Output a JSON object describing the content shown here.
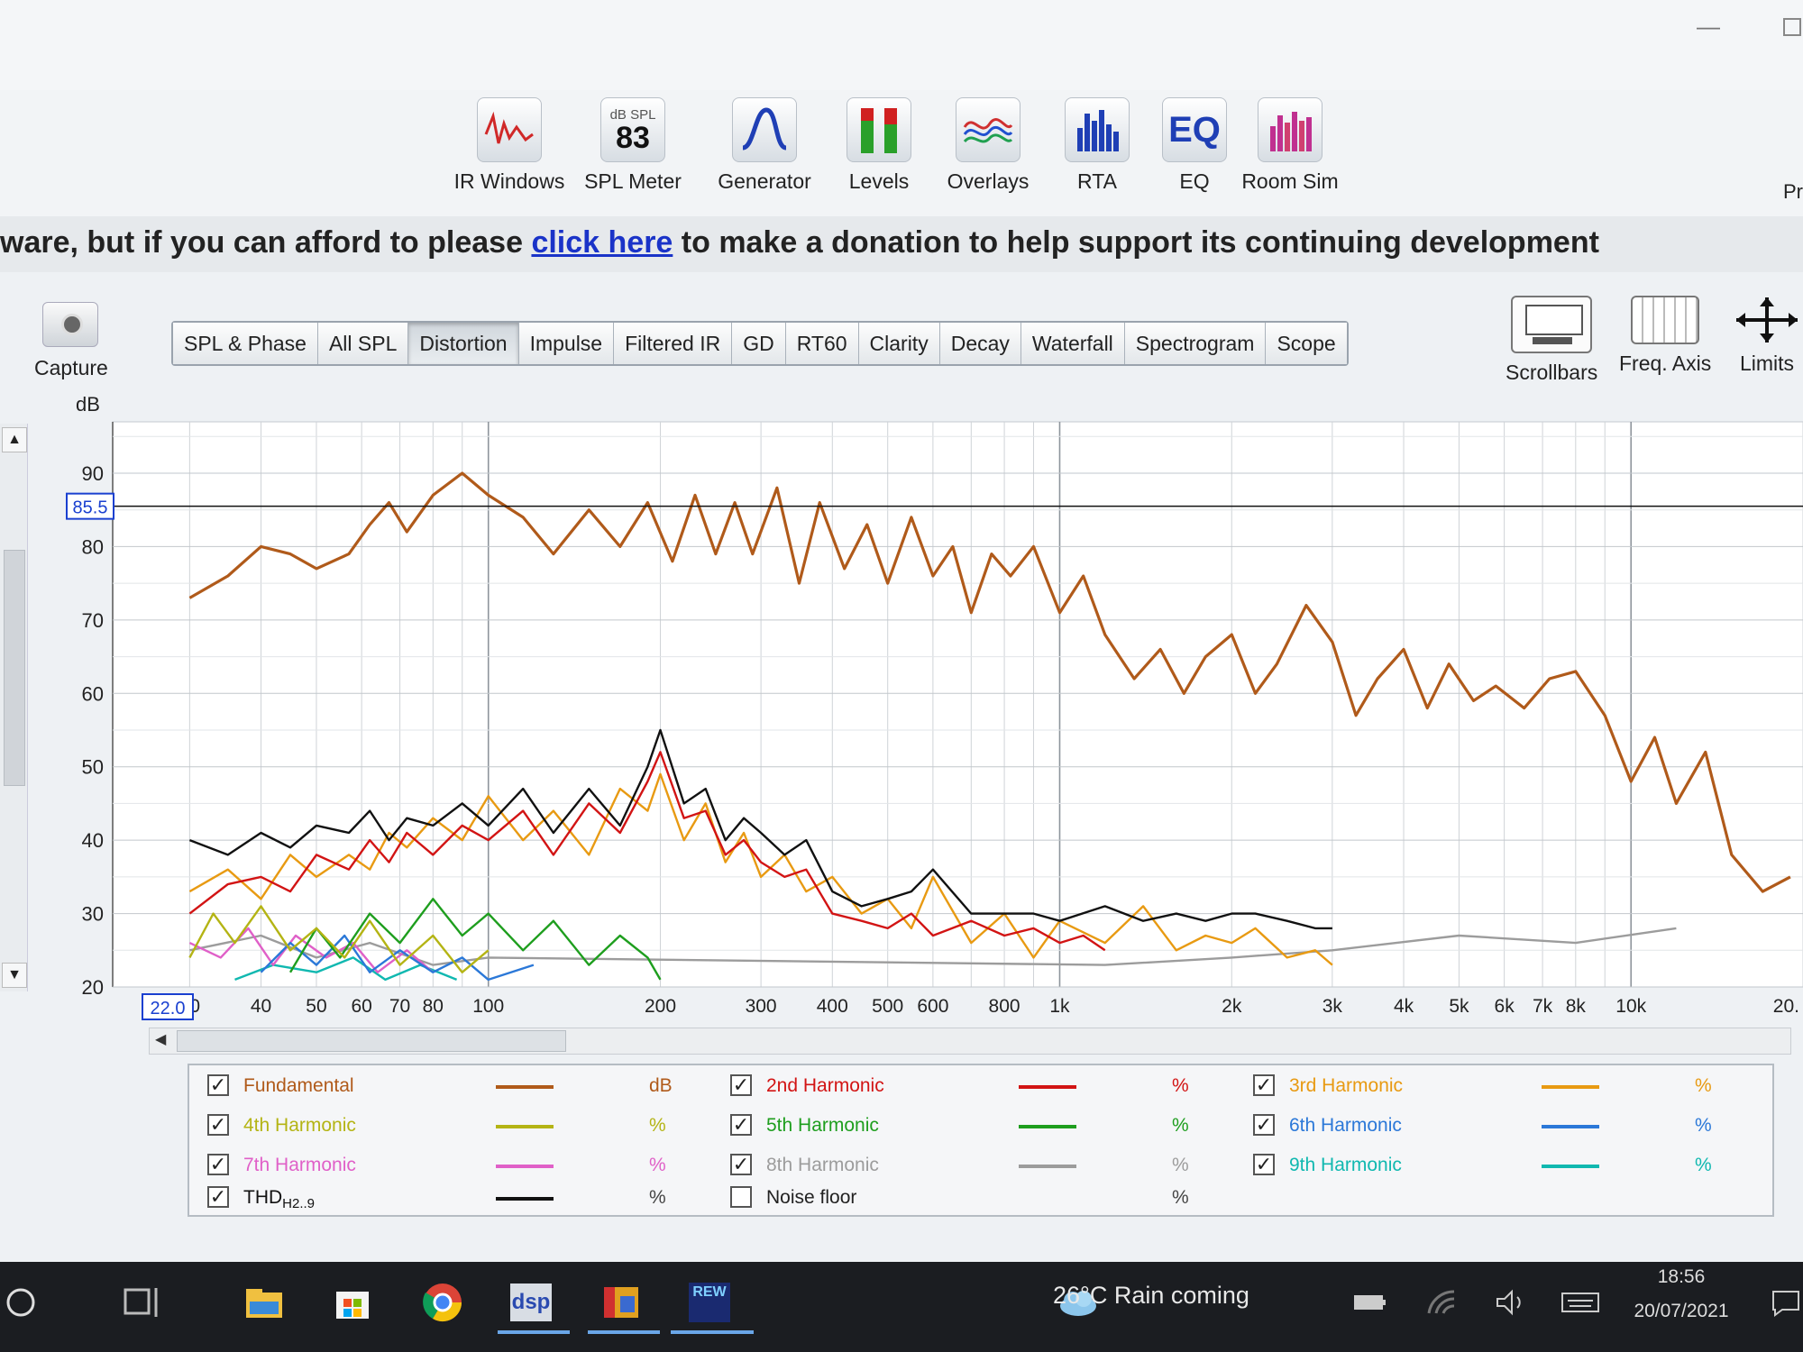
{
  "window": {
    "min_glyph": "—"
  },
  "toolbar": {
    "items": [
      {
        "label": "IR Windows",
        "icon": "ir-windows-icon"
      },
      {
        "label": "SPL Meter",
        "icon": "spl-meter-icon",
        "top": "dB SPL",
        "value": "83"
      },
      {
        "label": "Generator",
        "icon": "generator-icon"
      },
      {
        "label": "Levels",
        "icon": "levels-icon"
      },
      {
        "label": "Overlays",
        "icon": "overlays-icon"
      },
      {
        "label": "RTA",
        "icon": "rta-icon"
      },
      {
        "label": "EQ",
        "icon": "eq-icon",
        "text": "EQ"
      },
      {
        "label": "Room Sim",
        "icon": "room-sim-icon"
      }
    ],
    "cut_label": "Pr"
  },
  "banner": {
    "pre": "ware, but if you can afford to please ",
    "link": "click here",
    "post": " to make a donation to help support its continuing development"
  },
  "capture_label": "Capture",
  "tabs": [
    "SPL & Phase",
    "All SPL",
    "Distortion",
    "Impulse",
    "Filtered IR",
    "GD",
    "RT60",
    "Clarity",
    "Decay",
    "Waterfall",
    "Spectrogram",
    "Scope"
  ],
  "active_tab": "Distortion",
  "right_tools": [
    "Scrollbars",
    "Freq. Axis",
    "Limits"
  ],
  "chart_data": {
    "type": "line",
    "ylabel": "dB",
    "ylim": [
      20,
      97
    ],
    "x_scale": "log",
    "xlim": [
      22,
      20000
    ],
    "y_ticks": [
      "20",
      "30",
      "40",
      "50",
      "60",
      "70",
      "80",
      "90"
    ],
    "x_ticks": [
      "30",
      "40",
      "50",
      "60",
      "70",
      "80",
      "100",
      "200",
      "300",
      "400",
      "500",
      "600",
      "800",
      "1k",
      "2k",
      "3k",
      "4k",
      "5k",
      "6k",
      "7k",
      "8k",
      "10k",
      "20."
    ],
    "cursor_y": "85.5",
    "cursor_x": "22.0",
    "grid": true,
    "series": [
      {
        "name": "Fundamental",
        "color": "#b05a1a",
        "x": [
          30,
          35,
          40,
          45,
          50,
          57,
          62,
          67,
          72,
          80,
          90,
          100,
          115,
          130,
          150,
          170,
          190,
          210,
          230,
          250,
          270,
          290,
          320,
          350,
          380,
          420,
          460,
          500,
          550,
          600,
          650,
          700,
          760,
          820,
          900,
          1000,
          1100,
          1200,
          1350,
          1500,
          1650,
          1800,
          2000,
          2200,
          2400,
          2700,
          3000,
          3300,
          3600,
          4000,
          4400,
          4800,
          5300,
          5800,
          6500,
          7200,
          8000,
          9000,
          10000,
          11000,
          12000,
          13500,
          15000,
          17000,
          19000
        ],
        "y": [
          73,
          76,
          80,
          79,
          77,
          79,
          83,
          86,
          82,
          87,
          90,
          87,
          84,
          79,
          85,
          80,
          86,
          78,
          87,
          79,
          86,
          79,
          88,
          75,
          86,
          77,
          83,
          75,
          84,
          76,
          80,
          71,
          79,
          76,
          80,
          71,
          76,
          68,
          62,
          66,
          60,
          65,
          68,
          60,
          64,
          72,
          67,
          57,
          62,
          66,
          58,
          64,
          59,
          61,
          58,
          62,
          63,
          57,
          48,
          54,
          45,
          52,
          38,
          33,
          35
        ]
      },
      {
        "name": "THD",
        "color": "#111111",
        "x": [
          30,
          35,
          40,
          45,
          50,
          57,
          62,
          67,
          72,
          80,
          90,
          100,
          115,
          130,
          150,
          170,
          190,
          200,
          220,
          240,
          260,
          280,
          300,
          330,
          360,
          400,
          450,
          500,
          550,
          600,
          700,
          800,
          900,
          1000,
          1200,
          1400,
          1600,
          1800,
          2000,
          2200,
          2500,
          2800,
          3000
        ],
        "y": [
          40,
          38,
          41,
          39,
          42,
          41,
          44,
          40,
          43,
          42,
          45,
          42,
          47,
          41,
          47,
          42,
          50,
          55,
          45,
          47,
          40,
          43,
          41,
          38,
          40,
          33,
          31,
          32,
          33,
          36,
          30,
          30,
          30,
          29,
          31,
          29,
          30,
          29,
          30,
          30,
          29,
          28,
          28
        ]
      },
      {
        "name": "2nd Harmonic",
        "color": "#d21414",
        "x": [
          30,
          35,
          40,
          45,
          50,
          57,
          62,
          67,
          72,
          80,
          90,
          100,
          115,
          130,
          150,
          170,
          190,
          200,
          220,
          240,
          260,
          280,
          300,
          330,
          360,
          400,
          450,
          500,
          550,
          600,
          700,
          800,
          900,
          1000,
          1100,
          1200
        ],
        "y": [
          30,
          34,
          35,
          33,
          38,
          36,
          40,
          37,
          41,
          38,
          42,
          40,
          44,
          38,
          45,
          41,
          48,
          52,
          43,
          44,
          38,
          40,
          37,
          35,
          36,
          30,
          29,
          28,
          30,
          27,
          29,
          27,
          28,
          26,
          27,
          25
        ]
      },
      {
        "name": "3rd Harmonic",
        "color": "#e89a12",
        "x": [
          30,
          35,
          40,
          45,
          50,
          57,
          62,
          67,
          72,
          80,
          90,
          100,
          115,
          130,
          150,
          170,
          190,
          200,
          220,
          240,
          260,
          280,
          300,
          330,
          360,
          400,
          450,
          500,
          550,
          600,
          700,
          800,
          900,
          1000,
          1200,
          1400,
          1600,
          1800,
          2000,
          2200,
          2500,
          2800,
          3000
        ],
        "y": [
          33,
          36,
          32,
          38,
          35,
          38,
          36,
          41,
          39,
          43,
          40,
          46,
          40,
          44,
          38,
          47,
          44,
          49,
          40,
          45,
          37,
          41,
          35,
          38,
          33,
          35,
          30,
          32,
          28,
          35,
          26,
          30,
          24,
          29,
          26,
          31,
          25,
          27,
          26,
          28,
          24,
          25,
          23
        ]
      },
      {
        "name": "4th Harmonic",
        "color": "#b4b414",
        "x": [
          30,
          33,
          36,
          40,
          45,
          50,
          56,
          62,
          70,
          80,
          90,
          100
        ],
        "y": [
          24,
          30,
          26,
          31,
          25,
          28,
          24,
          29,
          23,
          27,
          22,
          25
        ]
      },
      {
        "name": "5th Harmonic",
        "color": "#1e9e1e",
        "x": [
          45,
          50,
          55,
          62,
          70,
          80,
          90,
          100,
          115,
          130,
          150,
          170,
          190,
          200
        ],
        "y": [
          22,
          28,
          24,
          30,
          26,
          32,
          27,
          30,
          25,
          29,
          23,
          27,
          24,
          21
        ]
      },
      {
        "name": "6th Harmonic",
        "color": "#2b78d8",
        "x": [
          40,
          45,
          50,
          56,
          62,
          70,
          80,
          90,
          100,
          120
        ],
        "y": [
          22,
          26,
          23,
          27,
          22,
          25,
          22,
          24,
          21,
          23
        ]
      },
      {
        "name": "7th Harmonic",
        "color": "#e060c8",
        "x": [
          30,
          34,
          38,
          42,
          46,
          52,
          58,
          64,
          72,
          80
        ],
        "y": [
          26,
          24,
          28,
          23,
          27,
          24,
          26,
          22,
          25,
          22
        ]
      },
      {
        "name": "8th Harmonic",
        "color": "#9c9c9c",
        "x": [
          30,
          40,
          50,
          62,
          80,
          100,
          1200,
          2000,
          3000,
          5000,
          8000,
          12000
        ],
        "y": [
          25,
          27,
          24,
          26,
          23,
          24,
          23,
          24,
          25,
          27,
          26,
          28
        ]
      },
      {
        "name": "9th Harmonic",
        "color": "#10b8b0",
        "x": [
          36,
          42,
          50,
          58,
          66,
          76,
          88
        ],
        "y": [
          21,
          23,
          22,
          24,
          21,
          23,
          21
        ]
      }
    ]
  },
  "legend": [
    {
      "label": "Fundamental",
      "unit": "dB",
      "checked": true,
      "color": "#b05a1a"
    },
    {
      "label": "2nd Harmonic",
      "unit": "%",
      "checked": true,
      "color": "#d21414"
    },
    {
      "label": "3rd Harmonic",
      "unit": "%",
      "checked": true,
      "color": "#e89a12"
    },
    {
      "label": "4th Harmonic",
      "unit": "%",
      "checked": true,
      "color": "#b4b414"
    },
    {
      "label": "5th Harmonic",
      "unit": "%",
      "checked": true,
      "color": "#1e9e1e"
    },
    {
      "label": "6th Harmonic",
      "unit": "%",
      "checked": true,
      "color": "#2b78d8"
    },
    {
      "label": "7th Harmonic",
      "unit": "%",
      "checked": true,
      "color": "#e060c8"
    },
    {
      "label": "8th Harmonic",
      "unit": "%",
      "checked": true,
      "color": "#9c9c9c"
    },
    {
      "label": "9th Harmonic",
      "unit": "%",
      "checked": true,
      "color": "#10b8b0"
    },
    {
      "label": "THD",
      "sub": "H2..9",
      "unit": "%",
      "checked": true,
      "color": "#111111"
    },
    {
      "label": "Noise floor",
      "unit": "%",
      "checked": false,
      "color": ""
    }
  ],
  "taskbar": {
    "weather": "26°C  Rain coming",
    "time": "18:56",
    "date": "20/07/2021",
    "rew_label": "REW",
    "dsp_label": "dsp"
  }
}
